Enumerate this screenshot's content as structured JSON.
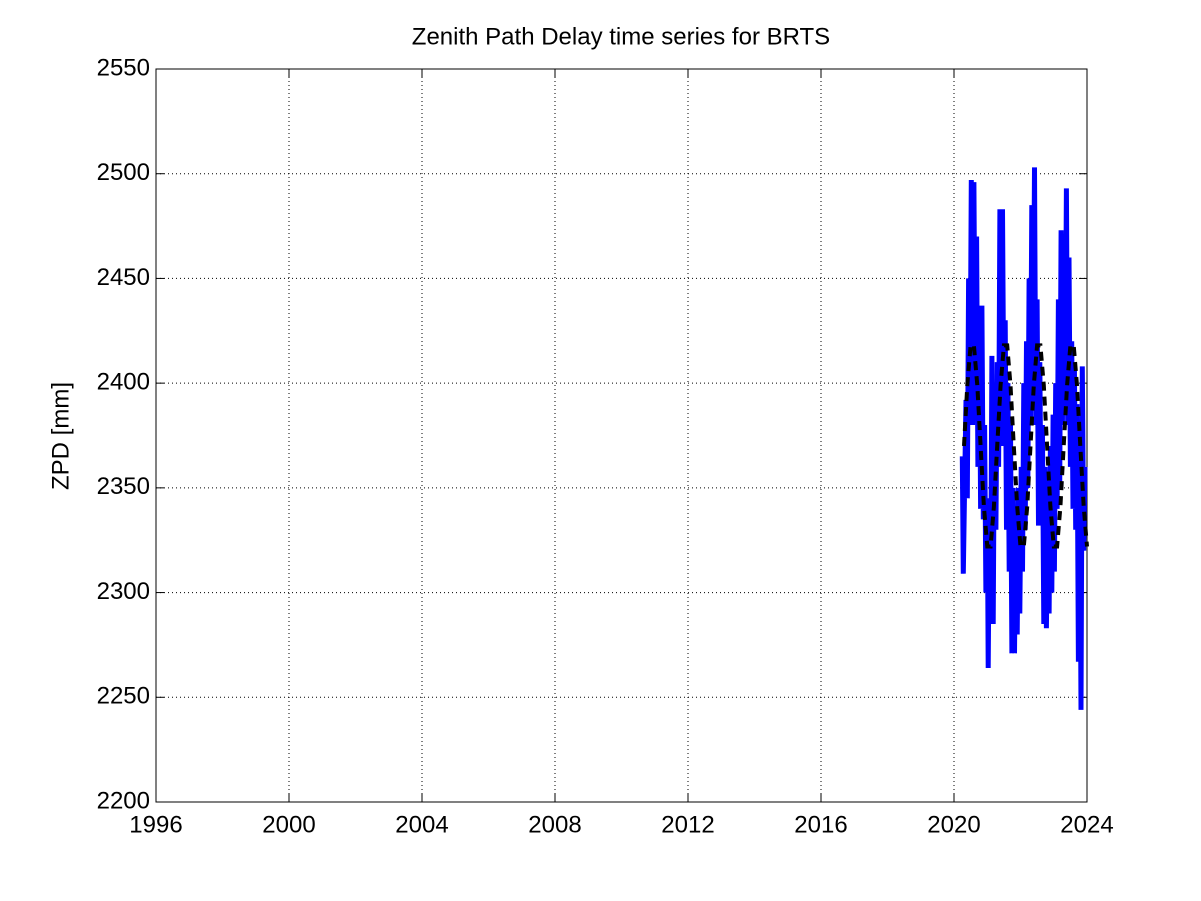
{
  "chart_data": {
    "type": "line",
    "title": "Zenith Path Delay time series for BRTS",
    "ylabel": "ZPD [mm]",
    "xlim": [
      1996,
      2024
    ],
    "xticks": [
      1996,
      2000,
      2004,
      2008,
      2012,
      2016,
      2020,
      2024
    ],
    "ylim": [
      2200,
      2550
    ],
    "yticks": [
      2200,
      2250,
      2300,
      2350,
      2400,
      2450,
      2500,
      2550
    ],
    "grid": true,
    "series": [
      {
        "color": "#0000ff",
        "dash": false,
        "x": [
          2020.25,
          2020.28,
          2020.32,
          2020.36,
          2020.4,
          2020.44,
          2020.48,
          2020.52,
          2020.56,
          2020.6,
          2020.64,
          2020.68,
          2020.72,
          2020.76,
          2020.8,
          2020.84,
          2020.88,
          2020.92,
          2020.96,
          2021.0,
          2021.03,
          2021.06,
          2021.1,
          2021.14,
          2021.18,
          2021.22,
          2021.26,
          2021.3,
          2021.34,
          2021.38,
          2021.42,
          2021.46,
          2021.5,
          2021.54,
          2021.58,
          2021.62,
          2021.66,
          2021.7,
          2021.74,
          2021.78,
          2021.82,
          2021.86,
          2021.9,
          2021.94,
          2021.98,
          2022.02,
          2022.06,
          2022.1,
          2022.14,
          2022.18,
          2022.22,
          2022.26,
          2022.3,
          2022.34,
          2022.38,
          2022.42,
          2022.46,
          2022.5,
          2022.54,
          2022.58,
          2022.62,
          2022.66,
          2022.7,
          2022.74,
          2022.78,
          2022.82,
          2022.86,
          2022.9,
          2022.94,
          2022.98,
          2023.02,
          2023.06,
          2023.1,
          2023.14,
          2023.18,
          2023.22,
          2023.26,
          2023.3,
          2023.34,
          2023.38,
          2023.42,
          2023.46,
          2023.5,
          2023.54,
          2023.58,
          2023.62,
          2023.66,
          2023.7,
          2023.74,
          2023.78,
          2023.82,
          2023.86,
          2023.9,
          2023.94
        ],
        "values": [
          2365,
          2309,
          2350,
          2392,
          2345,
          2450,
          2385,
          2497,
          2380,
          2496,
          2390,
          2470,
          2360,
          2435,
          2340,
          2437,
          2335,
          2380,
          2300,
          2345,
          2264,
          2330,
          2290,
          2413,
          2285,
          2400,
          2330,
          2410,
          2360,
          2483,
          2370,
          2483,
          2380,
          2430,
          2330,
          2400,
          2310,
          2380,
          2271,
          2350,
          2271,
          2340,
          2280,
          2350,
          2290,
          2360,
          2310,
          2400,
          2330,
          2420,
          2350,
          2450,
          2380,
          2485,
          2390,
          2503,
          2380,
          2440,
          2332,
          2410,
          2335,
          2380,
          2285,
          2360,
          2283,
          2340,
          2290,
          2370,
          2300,
          2385,
          2310,
          2400,
          2340,
          2440,
          2350,
          2473,
          2380,
          2470,
          2385,
          2493,
          2380,
          2460,
          2360,
          2420,
          2340,
          2408,
          2330,
          2390,
          2267,
          2370,
          2244,
          2408,
          2320,
          2360
        ]
      },
      {
        "color": "#000000",
        "dash": true,
        "x": [
          2020.3,
          2020.4,
          2020.5,
          2020.6,
          2020.7,
          2020.8,
          2020.9,
          2021.0,
          2021.1,
          2021.2,
          2021.3,
          2021.4,
          2021.5,
          2021.6,
          2021.7,
          2021.8,
          2021.9,
          2022.0,
          2022.1,
          2022.2,
          2022.3,
          2022.4,
          2022.5,
          2022.6,
          2022.7,
          2022.8,
          2022.9,
          2023.0,
          2023.1,
          2023.2,
          2023.3,
          2023.4,
          2023.5,
          2023.6,
          2023.7,
          2023.8,
          2023.9,
          2024.0
        ],
        "values": [
          2370,
          2399,
          2418,
          2418,
          2399,
          2370,
          2341,
          2322,
          2322,
          2341,
          2370,
          2399,
          2418,
          2418,
          2399,
          2370,
          2341,
          2322,
          2322,
          2341,
          2370,
          2399,
          2418,
          2418,
          2399,
          2370,
          2341,
          2322,
          2322,
          2341,
          2370,
          2399,
          2418,
          2418,
          2399,
          2370,
          2341,
          2322
        ]
      }
    ]
  }
}
